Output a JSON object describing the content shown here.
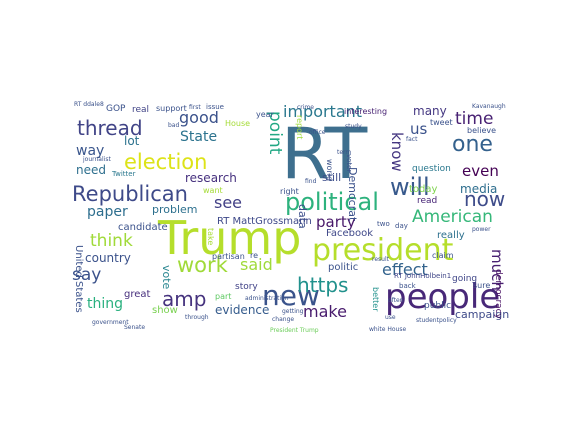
{
  "word_cloud": {
    "words": [
      {
        "text": "RT",
        "color": "#3e6f8e"
      },
      {
        "text": "Trump",
        "color": "#b5de2b"
      },
      {
        "text": "people",
        "color": "#482878"
      },
      {
        "text": "president",
        "color": "#b5de2b"
      },
      {
        "text": "new",
        "color": "#3a538b"
      },
      {
        "text": "political",
        "color": "#2db27d"
      },
      {
        "text": "will",
        "color": "#38598c"
      },
      {
        "text": "election",
        "color": "#dde318"
      },
      {
        "text": "Republican",
        "color": "#3e4a89"
      },
      {
        "text": "one",
        "color": "#34618d"
      },
      {
        "text": "thread",
        "color": "#414487"
      },
      {
        "text": "https",
        "color": "#21918c"
      },
      {
        "text": "American",
        "color": "#35b779"
      },
      {
        "text": "say",
        "color": "#3b528b"
      },
      {
        "text": "now",
        "color": "#3e4c8a"
      },
      {
        "text": "work",
        "color": "#a0da39"
      },
      {
        "text": "amp",
        "color": "#46337e"
      },
      {
        "text": "think",
        "color": "#a0da39"
      },
      {
        "text": "time",
        "color": "#482173"
      },
      {
        "text": "effect",
        "color": "#33638d"
      },
      {
        "text": "point",
        "color": "#22a884"
      },
      {
        "text": "important",
        "color": "#2a788e"
      },
      {
        "text": "make",
        "color": "#481b6d"
      },
      {
        "text": "much",
        "color": "#482071"
      },
      {
        "text": "said",
        "color": "#9fda3a"
      },
      {
        "text": "see",
        "color": "#424086"
      },
      {
        "text": "party",
        "color": "#48186a"
      },
      {
        "text": "good",
        "color": "#3b528b"
      },
      {
        "text": "paper",
        "color": "#2e6e8e"
      },
      {
        "text": "State",
        "color": "#2c738e"
      },
      {
        "text": "know",
        "color": "#453781"
      },
      {
        "text": "us",
        "color": "#3b528b"
      },
      {
        "text": "even",
        "color": "#440154"
      },
      {
        "text": "thing",
        "color": "#2ab07f"
      },
      {
        "text": "way",
        "color": "#39558c"
      },
      {
        "text": "country",
        "color": "#3b528b"
      },
      {
        "text": "evidence",
        "color": "#365c8d"
      },
      {
        "text": "lot",
        "color": "#2c728e"
      },
      {
        "text": "media",
        "color": "#2e6e8e"
      },
      {
        "text": "many",
        "color": "#453882"
      },
      {
        "text": "need",
        "color": "#2e6f8e"
      },
      {
        "text": "research",
        "color": "#46307e"
      },
      {
        "text": "data",
        "color": "#3c4f8a"
      },
      {
        "text": "still",
        "color": "#3d4d8a"
      },
      {
        "text": "vote",
        "color": "#25848e"
      },
      {
        "text": "problem",
        "color": "#2d708e"
      },
      {
        "text": "Democrat",
        "color": "#3b518b"
      },
      {
        "text": "campaign",
        "color": "#3e4a89"
      },
      {
        "text": "show",
        "color": "#7ad151"
      },
      {
        "text": "United States",
        "color": "#3b528b"
      },
      {
        "text": "RT MattGrossmann",
        "color": "#3e4989"
      },
      {
        "text": "politic",
        "color": "#3b528b"
      },
      {
        "text": "today",
        "color": "#7fd34e"
      },
      {
        "text": "Facebook",
        "color": "#3f4889"
      },
      {
        "text": "great",
        "color": "#472f7d"
      },
      {
        "text": "candidate",
        "color": "#3b528b"
      },
      {
        "text": "read",
        "color": "#482677"
      },
      {
        "text": "really",
        "color": "#2d708e"
      },
      {
        "text": "public",
        "color": "#3b528b"
      },
      {
        "text": "question",
        "color": "#2a788e"
      },
      {
        "text": "going",
        "color": "#404688"
      },
      {
        "text": "democracy",
        "color": "#471063"
      },
      {
        "text": "story",
        "color": "#414287"
      },
      {
        "text": "GOP",
        "color": "#3b528b"
      },
      {
        "text": "real",
        "color": "#414487"
      },
      {
        "text": "support",
        "color": "#3b528b"
      },
      {
        "text": "issue",
        "color": "#3b528b"
      },
      {
        "text": "year",
        "color": "#3b528b"
      },
      {
        "text": "interesting",
        "color": "#482374"
      },
      {
        "text": "tweet",
        "color": "#3b528b"
      },
      {
        "text": "believe",
        "color": "#3b528b"
      },
      {
        "text": "part",
        "color": "#5ec962"
      },
      {
        "text": "partisan",
        "color": "#3b528b"
      },
      {
        "text": "want",
        "color": "#a5db36"
      },
      {
        "text": "right",
        "color": "#3b528b"
      },
      {
        "text": "re",
        "color": "#3b528b"
      },
      {
        "text": "take",
        "color": "#a8db34"
      },
      {
        "text": "House",
        "color": "#a5db36"
      },
      {
        "text": "Twitter",
        "color": "#2a788e"
      },
      {
        "text": "report",
        "color": "#9fda3a"
      },
      {
        "text": "world",
        "color": "#3b528b"
      },
      {
        "text": "voter",
        "color": "#3b528b"
      },
      {
        "text": "claim",
        "color": "#3b528b"
      },
      {
        "text": "better",
        "color": "#21918c"
      },
      {
        "text": "sure",
        "color": "#3b528b"
      },
      {
        "text": "day",
        "color": "#3b528b"
      },
      {
        "text": "two",
        "color": "#3b528b"
      },
      {
        "text": "journalist",
        "color": "#3b528b"
      },
      {
        "text": "RT ddale8",
        "color": "#3b528b"
      },
      {
        "text": "Kavanaugh",
        "color": "#3b528b"
      },
      {
        "text": "RT JohnHolbein1",
        "color": "#404688"
      },
      {
        "text": "President Trump",
        "color": "#6ccd5a"
      },
      {
        "text": "back",
        "color": "#3b528b"
      },
      {
        "text": "first",
        "color": "#3b528b"
      },
      {
        "text": "study",
        "color": "#3b528b"
      },
      {
        "text": "office",
        "color": "#3b528b"
      },
      {
        "text": "government",
        "color": "#3b528b"
      },
      {
        "text": "through",
        "color": "#3b528b"
      },
      {
        "text": "change",
        "color": "#3b528b"
      },
      {
        "text": "find",
        "color": "#3b528b"
      },
      {
        "text": "fact",
        "color": "#3b528b"
      },
      {
        "text": "white House",
        "color": "#3b528b"
      },
      {
        "text": "result",
        "color": "#3b528b"
      },
      {
        "text": "bad",
        "color": "#3b528b"
      },
      {
        "text": "use",
        "color": "#3b528b"
      },
      {
        "text": "student",
        "color": "#3b528b"
      },
      {
        "text": "policy",
        "color": "#3b528b"
      },
      {
        "text": "crime",
        "color": "#3b528b"
      },
      {
        "text": "administration",
        "color": "#3b528b"
      },
      {
        "text": "term",
        "color": "#3b528b"
      },
      {
        "text": "power",
        "color": "#3b528b"
      },
      {
        "text": "Senate",
        "color": "#3b528b"
      },
      {
        "text": "often",
        "color": "#3b528b"
      },
      {
        "text": "getting",
        "color": "#3b528b"
      }
    ]
  }
}
